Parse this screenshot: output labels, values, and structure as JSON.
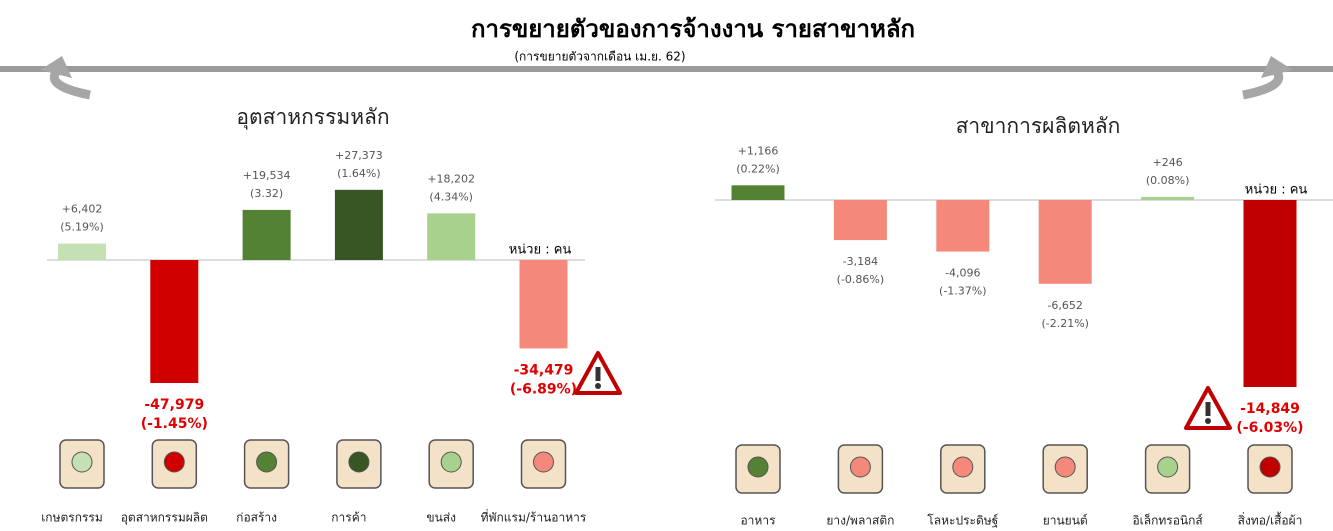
{
  "title": "การขยายตัวของการจ้างงาน รายสาขาหลัก",
  "subtitle": "(การขยายตัวจากเดือน เม.ย. 62)",
  "chart_data": [
    {
      "type": "bar",
      "title": "อุตสาหกรรมหลัก",
      "unit_label": "หน่วย : คน",
      "categories": [
        "เกษตรกรรม",
        "อุตสาหกรรมผลิต",
        "ก่อสร้าง",
        "การค้า",
        "ขนส่ง",
        "ที่พักแรม/ร้านอาหาร"
      ],
      "values": [
        6402,
        -47979,
        19534,
        27373,
        18202,
        -34479
      ],
      "value_labels": [
        "+6,402",
        "-47,979",
        "+19,534",
        "+27,373",
        "+18,202",
        "-34,479"
      ],
      "percent_labels": [
        "(5.19%)",
        "(-1.45%)",
        "(3.32)",
        "(1.64%)",
        "(4.34%)",
        "(-6.89%)"
      ],
      "colors": [
        "#c5e0b4",
        "#d00000",
        "#548235",
        "#375623",
        "#a9d18e",
        "#f4897b"
      ]
    },
    {
      "type": "bar",
      "title": "สาขาการผลิตหลัก",
      "unit_label": "หน่วย : คน",
      "categories": [
        "อาหาร",
        "ยาง/พลาสติก",
        "โลหะประดิษฐ์",
        "ยานยนต์",
        "อิเล็กทรอนิกส์",
        "สิ่งทอ/เสื้อผ้า"
      ],
      "values": [
        1166,
        -3184,
        -4096,
        -6652,
        246,
        -14849
      ],
      "value_labels": [
        "+1,166",
        "-3,184",
        "-4,096",
        "-6,652",
        "+246",
        "-14,849"
      ],
      "percent_labels": [
        "(0.22%)",
        "(-0.86%)",
        "(-1.37%)",
        "(-2.21%)",
        "(0.08%)",
        "(-6.03%)"
      ],
      "colors": [
        "#548235",
        "#f4897b",
        "#f4897b",
        "#f4897b",
        "#a9d18e",
        "#c00000"
      ]
    }
  ]
}
